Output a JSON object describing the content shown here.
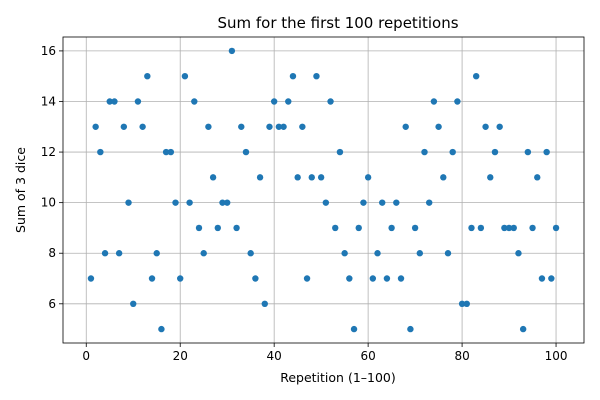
{
  "chart_data": {
    "type": "scatter",
    "title": "Sum for the first 100 repetitions",
    "xlabel": "Repetition (1–100)",
    "ylabel": "Sum of 3 dice",
    "xlim": [
      -4.95,
      105.95
    ],
    "ylim": [
      4.45,
      16.55
    ],
    "xticks": [
      0,
      20,
      40,
      60,
      80,
      100
    ],
    "yticks": [
      6,
      8,
      10,
      12,
      14,
      16
    ],
    "grid": true,
    "marker_color": "#1f77b4",
    "x": [
      1,
      2,
      3,
      4,
      5,
      6,
      7,
      8,
      9,
      10,
      11,
      12,
      13,
      14,
      15,
      16,
      17,
      18,
      19,
      20,
      21,
      22,
      23,
      24,
      25,
      26,
      27,
      28,
      29,
      30,
      31,
      32,
      33,
      34,
      35,
      36,
      37,
      38,
      39,
      40,
      41,
      42,
      43,
      44,
      45,
      46,
      47,
      48,
      49,
      50,
      51,
      52,
      53,
      54,
      55,
      56,
      57,
      58,
      59,
      60,
      61,
      62,
      63,
      64,
      65,
      66,
      67,
      68,
      69,
      70,
      71,
      72,
      73,
      74,
      75,
      76,
      77,
      78,
      79,
      80,
      81,
      82,
      83,
      84,
      85,
      86,
      87,
      88,
      89,
      90,
      91,
      92,
      93,
      94,
      95,
      96,
      97,
      98,
      99,
      100
    ],
    "y": [
      7,
      13,
      12,
      8,
      14,
      14,
      8,
      13,
      10,
      6,
      14,
      13,
      15,
      7,
      8,
      5,
      12,
      12,
      10,
      7,
      15,
      10,
      14,
      9,
      8,
      13,
      11,
      9,
      10,
      10,
      16,
      9,
      13,
      12,
      8,
      7,
      11,
      6,
      13,
      14,
      13,
      13,
      14,
      15,
      11,
      13,
      7,
      11,
      15,
      11,
      10,
      14,
      9,
      12,
      8,
      7,
      5,
      9,
      10,
      11,
      7,
      8,
      10,
      7,
      9,
      10,
      7,
      13,
      5,
      9,
      8,
      12,
      10,
      14,
      13,
      11,
      8,
      12,
      14,
      6,
      6,
      9,
      15,
      9,
      13,
      11,
      12,
      13,
      9,
      9,
      9,
      8,
      5,
      12,
      9,
      11,
      7,
      12,
      7,
      9
    ]
  }
}
